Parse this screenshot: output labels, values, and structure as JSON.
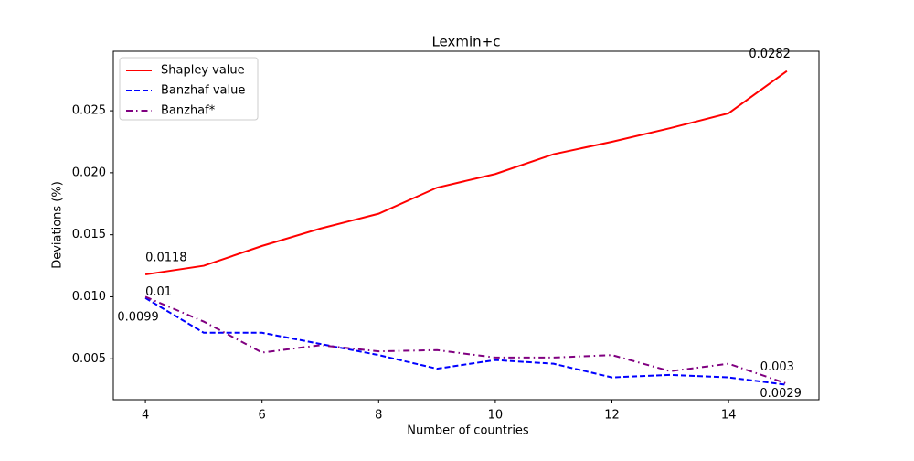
{
  "chart_data": {
    "type": "line",
    "title": "Lexmin+c",
    "x_label": "Number of countries",
    "y_label": "Deviations (%)",
    "x": [
      4,
      5,
      6,
      7,
      8,
      9,
      10,
      11,
      12,
      13,
      14,
      15
    ],
    "series": [
      {
        "name": "Shapley value",
        "color": "#ff0000",
        "linestyle": "solid",
        "values": [
          0.0118,
          0.0125,
          0.0141,
          0.0155,
          0.0167,
          0.0188,
          0.0199,
          0.0215,
          0.0225,
          0.0236,
          0.0248,
          0.0282
        ],
        "value_labels": [
          "0.0118",
          null,
          null,
          null,
          null,
          null,
          null,
          null,
          null,
          null,
          null,
          "0.0282"
        ]
      },
      {
        "name": "Banzhaf value",
        "color": "#0000ff",
        "linestyle": "dashed",
        "values": [
          0.0099,
          0.0071,
          0.0071,
          0.0062,
          0.0053,
          0.0042,
          0.0049,
          0.0046,
          0.0035,
          0.0037,
          0.0035,
          0.0029
        ],
        "value_labels": [
          "0.0099",
          null,
          null,
          null,
          null,
          null,
          null,
          null,
          null,
          null,
          null,
          "0.0029"
        ]
      },
      {
        "name": "Banzhaf*",
        "color": "#800080",
        "linestyle": "dashdot",
        "values": [
          0.01,
          0.008,
          0.0055,
          0.0061,
          0.0056,
          0.0057,
          0.0051,
          0.0051,
          0.0053,
          0.004,
          0.0046,
          0.003
        ],
        "value_labels": [
          "0.01",
          null,
          null,
          null,
          null,
          null,
          null,
          null,
          null,
          null,
          null,
          "0.003"
        ]
      }
    ],
    "xlim": [
      3.45,
      15.55
    ],
    "xticks": [
      4,
      6,
      8,
      10,
      12,
      14
    ],
    "ylim": [
      0.0017,
      0.0298
    ],
    "yticks": [
      0.005,
      {
        "value": 0.01,
        "label": "0.010"
      },
      0.015,
      {
        "value": 0.02,
        "label": "0.020"
      },
      0.025
    ],
    "legend": "upper left"
  }
}
